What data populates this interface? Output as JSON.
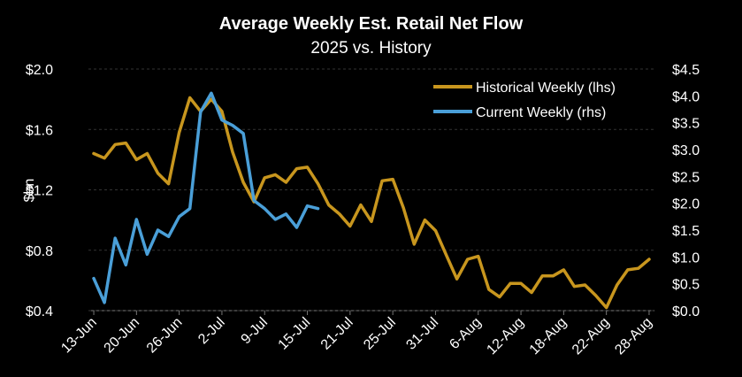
{
  "chart_data": {
    "type": "line",
    "title": "Average Weekly Est. Retail Net Flow",
    "subtitle": "2025 vs. History",
    "ylabel_left": "$bn",
    "ylim_left": [
      0.4,
      2.0
    ],
    "yticks_left": [
      "$0.4",
      "$0.8",
      "$1.2",
      "$1.6",
      "$2.0"
    ],
    "ylim_right": [
      0.0,
      4.5
    ],
    "yticks_right": [
      "$0.0",
      "$0.5",
      "$1.0",
      "$1.5",
      "$2.0",
      "$2.5",
      "$3.0",
      "$3.5",
      "$4.0",
      "$4.5"
    ],
    "x_tick_labels": [
      "13-Jun",
      "20-Jun",
      "26-Jun",
      "2-Jul",
      "9-Jul",
      "15-Jul",
      "21-Jul",
      "25-Jul",
      "31-Jul",
      "6-Aug",
      "12-Aug",
      "18-Aug",
      "22-Aug",
      "28-Aug"
    ],
    "legend_position": "top-right",
    "series": [
      {
        "name": "Historical Weekly (lhs)",
        "axis": "left",
        "color": "#C8961E",
        "values": [
          1.44,
          1.41,
          1.5,
          1.51,
          1.4,
          1.44,
          1.31,
          1.24,
          1.58,
          1.81,
          1.72,
          1.8,
          1.72,
          1.45,
          1.25,
          1.12,
          1.28,
          1.3,
          1.25,
          1.34,
          1.35,
          1.24,
          1.1,
          1.04,
          0.96,
          1.1,
          0.99,
          1.26,
          1.27,
          1.08,
          0.84,
          1.0,
          0.93,
          0.77,
          0.61,
          0.74,
          0.76,
          0.54,
          0.49,
          0.58,
          0.58,
          0.52,
          0.63,
          0.63,
          0.67,
          0.56,
          0.57,
          0.5,
          0.42,
          0.57,
          0.67,
          0.68,
          0.74
        ]
      },
      {
        "name": "Current Weekly (rhs)",
        "axis": "right",
        "color": "#4A9FD8",
        "values": [
          0.6,
          0.15,
          1.35,
          0.85,
          1.7,
          1.05,
          1.5,
          1.38,
          1.75,
          1.9,
          3.7,
          4.05,
          3.55,
          3.45,
          3.3,
          2.05,
          1.9,
          1.7,
          1.8,
          1.55,
          1.95,
          1.9
        ]
      }
    ]
  }
}
